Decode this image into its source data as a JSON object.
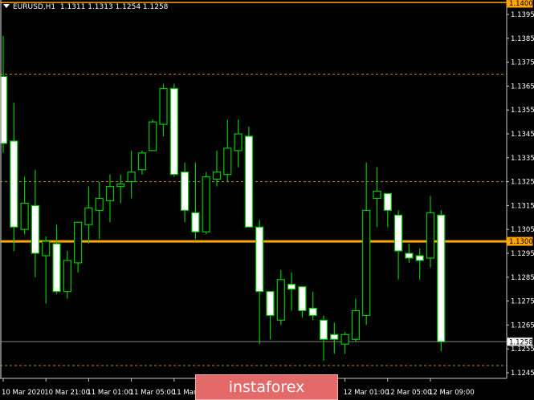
{
  "header": {
    "symbol": "EURUSD,H1",
    "ohlc": "1.1311 1.1313 1.1254 1.1258"
  },
  "logo": {
    "text": "instaforex"
  },
  "colors": {
    "background": "#000000",
    "bull_candle": "#00c800",
    "bear_candle": "#ffffff",
    "level_line": "#ffa500",
    "dotted_level": "#b8860b",
    "bid_line": "#808080",
    "axis_text": "#ffffff",
    "logo_bg": "#e46a6a"
  },
  "chart_data": {
    "type": "candlestick",
    "price_axis": {
      "range": [
        1.1241,
        1.1401
      ],
      "ticks": [
        "1.1395",
        "1.1385",
        "1.1375",
        "1.1365",
        "1.1355",
        "1.1345",
        "1.1335",
        "1.1325",
        "1.1315",
        "1.1305",
        "1.1295",
        "1.1285",
        "1.1275",
        "1.1265",
        "1.1255",
        "1.1245"
      ]
    },
    "time_labels": [
      {
        "label": "10 Mar 2020",
        "candle": 0
      },
      {
        "label": "10 Mar 21:00",
        "candle": 4
      },
      {
        "label": "11 Mar 01:00",
        "candle": 8
      },
      {
        "label": "11 Mar 05:00",
        "candle": 12
      },
      {
        "label": "11 Mar 09:00",
        "candle": 16
      },
      {
        "label": "12 Mar 01:00",
        "candle": 32
      },
      {
        "label": "12 Mar 05:00",
        "candle": 36
      },
      {
        "label": "12 Mar 09:00",
        "candle": 40
      }
    ],
    "levels": [
      {
        "price": 1.14,
        "label": "1.1400",
        "style": "solid-orange"
      },
      {
        "price": 1.13,
        "label": "1.1300",
        "style": "solid-orange"
      },
      {
        "price": 1.1258,
        "label": "1.1258",
        "style": "bid"
      },
      {
        "price": 1.137,
        "style": "dotted"
      },
      {
        "price": 1.1325,
        "style": "dotted"
      },
      {
        "price": 1.1248,
        "style": "dotted"
      }
    ],
    "candles": [
      [
        1.1369,
        1.1386,
        1.1337,
        1.1341
      ],
      [
        1.1342,
        1.1358,
        1.1296,
        1.1306
      ],
      [
        1.1305,
        1.1327,
        1.1303,
        1.1316
      ],
      [
        1.1315,
        1.133,
        1.1285,
        1.1295
      ],
      [
        1.1294,
        1.1302,
        1.1274,
        1.13
      ],
      [
        1.1299,
        1.1307,
        1.1278,
        1.1279
      ],
      [
        1.1279,
        1.1296,
        1.1276,
        1.1292
      ],
      [
        1.1291,
        1.1308,
        1.1287,
        1.1308
      ],
      [
        1.1307,
        1.1323,
        1.1299,
        1.1314
      ],
      [
        1.1313,
        1.1325,
        1.1301,
        1.1318
      ],
      [
        1.1317,
        1.1328,
        1.1308,
        1.1323
      ],
      [
        1.1323,
        1.1328,
        1.1316,
        1.1324
      ],
      [
        1.1325,
        1.1338,
        1.1318,
        1.1329
      ],
      [
        1.133,
        1.1338,
        1.1328,
        1.1337
      ],
      [
        1.1338,
        1.1351,
        1.1338,
        1.135
      ],
      [
        1.1349,
        1.1366,
        1.1344,
        1.1364
      ],
      [
        1.1364,
        1.1366,
        1.1327,
        1.1328
      ],
      [
        1.1329,
        1.1333,
        1.1308,
        1.1313
      ],
      [
        1.1312,
        1.1333,
        1.1301,
        1.1304
      ],
      [
        1.1304,
        1.1329,
        1.1303,
        1.1327
      ],
      [
        1.1326,
        1.1338,
        1.1323,
        1.1329
      ],
      [
        1.1328,
        1.1351,
        1.1325,
        1.1339
      ],
      [
        1.1338,
        1.1351,
        1.1331,
        1.1345
      ],
      [
        1.1344,
        1.1348,
        1.1306,
        1.1306
      ],
      [
        1.1306,
        1.1309,
        1.1257,
        1.1279
      ],
      [
        1.1279,
        1.1279,
        1.1259,
        1.1269
      ],
      [
        1.1267,
        1.1288,
        1.1265,
        1.1284
      ],
      [
        1.1282,
        1.1287,
        1.1271,
        1.128
      ],
      [
        1.1281,
        1.1281,
        1.1268,
        1.1271
      ],
      [
        1.1272,
        1.1279,
        1.1267,
        1.1269
      ],
      [
        1.1267,
        1.1269,
        1.125,
        1.1259
      ],
      [
        1.1261,
        1.1266,
        1.1253,
        1.1259
      ],
      [
        1.1257,
        1.1262,
        1.1253,
        1.1261
      ],
      [
        1.1259,
        1.1276,
        1.1258,
        1.1271
      ],
      [
        1.1269,
        1.1333,
        1.1265,
        1.1313
      ],
      [
        1.1318,
        1.1331,
        1.1306,
        1.1321
      ],
      [
        1.132,
        1.132,
        1.1306,
        1.1313
      ],
      [
        1.1311,
        1.1313,
        1.1284,
        1.1296
      ],
      [
        1.1295,
        1.1299,
        1.1291,
        1.1293
      ],
      [
        1.1294,
        1.1297,
        1.1284,
        1.1292
      ],
      [
        1.1293,
        1.1319,
        1.1289,
        1.1312
      ],
      [
        1.1311,
        1.1313,
        1.1254,
        1.1258
      ]
    ]
  }
}
